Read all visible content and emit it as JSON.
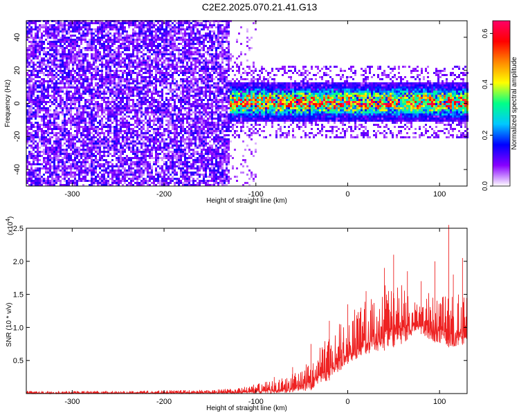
{
  "title": "C2E2.2025.070.21.41.G13",
  "chart_data": [
    {
      "type": "heatmap",
      "xlabel": "Height of straight line (km)",
      "ylabel": "Frequency (Hz)",
      "xlim": [
        -350,
        130
      ],
      "ylim": [
        -50,
        50
      ],
      "xticks": [
        -300,
        -200,
        -100,
        0,
        100
      ],
      "xtick_labels": [
        "-300",
        "-200",
        "-100",
        "0",
        "100"
      ],
      "yticks": [
        -40,
        -20,
        0,
        20,
        40
      ],
      "ytick_labels": [
        "-40",
        "-20",
        "0",
        "20",
        "40"
      ],
      "colorbar": {
        "label": "Normalized spectral amplitude",
        "range": [
          0,
          0.65
        ],
        "ticks": [
          0.0,
          0.2,
          0.4,
          0.6
        ],
        "tick_labels": [
          "0.0",
          "0.2",
          "0.4",
          "0.6"
        ],
        "colors": [
          "#ffffff",
          "#8800ff",
          "#0000ff",
          "#00c8ff",
          "#00ff88",
          "#ffff00",
          "#ff8800",
          "#ff0000",
          "#ff0066"
        ]
      },
      "regions": [
        {
          "x_range": [
            -350,
            -130
          ],
          "freq_range": [
            -50,
            50
          ],
          "amplitude": "low, broadband (~0.05–0.15)"
        },
        {
          "x_range": [
            -130,
            130
          ],
          "freq_range": [
            -12,
            12
          ],
          "amplitude": "elevated narrowband around 0 Hz (~0.2–0.6)"
        }
      ],
      "grid": false,
      "legend": "none"
    },
    {
      "type": "line",
      "xlabel": "Height of straight line (km)",
      "ylabel": "SNR (10 * v/v)",
      "multiplier_label": "(x10",
      "multiplier_exp": "4",
      "xlim": [
        -350,
        130
      ],
      "ylim": [
        0,
        2.5
      ],
      "xticks": [
        -300,
        -200,
        -100,
        0,
        100
      ],
      "xtick_labels": [
        "-300",
        "-200",
        "-100",
        "0",
        "100"
      ],
      "yticks": [
        0.5,
        1.0,
        1.5,
        2.0,
        2.5
      ],
      "ytick_labels": [
        "0.5",
        "1.0",
        "1.5",
        "2.0",
        "2.5"
      ],
      "series": [
        {
          "color": "#ee2222",
          "envelope_x": [
            -350,
            -300,
            -250,
            -200,
            -150,
            -120,
            -100,
            -80,
            -60,
            -40,
            -20,
            0,
            20,
            40,
            60,
            75,
            90,
            110,
            130
          ],
          "envelope_lower": [
            0.0,
            0.0,
            0.0,
            0.0,
            0.0,
            0.0,
            0.0,
            0.0,
            0.02,
            0.05,
            0.2,
            0.45,
            0.6,
            0.65,
            0.75,
            0.95,
            0.8,
            0.7,
            0.75
          ],
          "envelope_upper": [
            0.04,
            0.04,
            0.04,
            0.05,
            0.06,
            0.08,
            0.15,
            0.2,
            0.3,
            0.5,
            0.9,
            1.25,
            1.4,
            1.7,
            1.65,
            1.35,
            1.55,
            1.45,
            1.6
          ],
          "peak_x": [
            -80,
            -60,
            -40,
            -20,
            0,
            20,
            40,
            50,
            65,
            80,
            95,
            110,
            115,
            125
          ],
          "peak_y": [
            0.25,
            0.4,
            0.75,
            1.1,
            1.35,
            1.55,
            1.9,
            2.1,
            1.85,
            1.7,
            2.0,
            2.55,
            1.8,
            2.05
          ]
        }
      ],
      "grid": false,
      "legend": "none"
    }
  ]
}
